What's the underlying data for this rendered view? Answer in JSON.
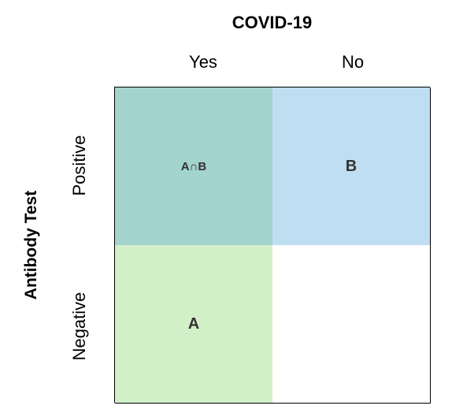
{
  "column_header": {
    "title": "COVID-19",
    "labels": [
      "Yes",
      "No"
    ]
  },
  "row_header": {
    "title": "Antibody Test",
    "labels": [
      "Positive",
      "Negative"
    ]
  },
  "cells": {
    "positive_yes": "A∩B",
    "positive_no": "B",
    "negative_yes": "A",
    "negative_no": ""
  },
  "colors": {
    "positive_yes": "#a3d4cd",
    "positive_no": "#bfdef1",
    "negative_yes": "#d2f0c7",
    "negative_no": "#ffffff"
  }
}
